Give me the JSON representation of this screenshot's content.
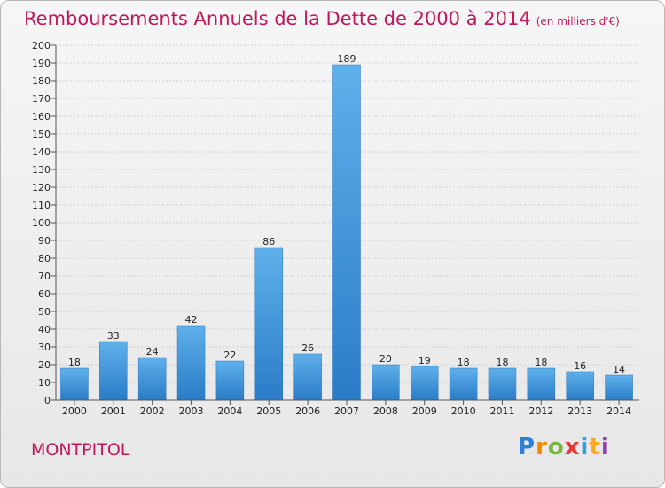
{
  "chart_data": {
    "type": "bar",
    "title": "Remboursements Annuels de la Dette de 2000 à 2014",
    "unit": "(en milliers d'€)",
    "categories": [
      "2000",
      "2001",
      "2002",
      "2003",
      "2004",
      "2005",
      "2006",
      "2007",
      "2008",
      "2009",
      "2010",
      "2011",
      "2012",
      "2013",
      "2014"
    ],
    "values": [
      18,
      33,
      24,
      42,
      22,
      86,
      26,
      189,
      20,
      19,
      18,
      18,
      18,
      16,
      14
    ],
    "ylim": [
      0,
      200
    ],
    "ytick_step": 10,
    "grid": true,
    "bar_color": "#3d95dd",
    "title_color": "#c2185b"
  },
  "footer": {
    "place": "MONTPITOL",
    "logo_text": "Proxiti"
  }
}
